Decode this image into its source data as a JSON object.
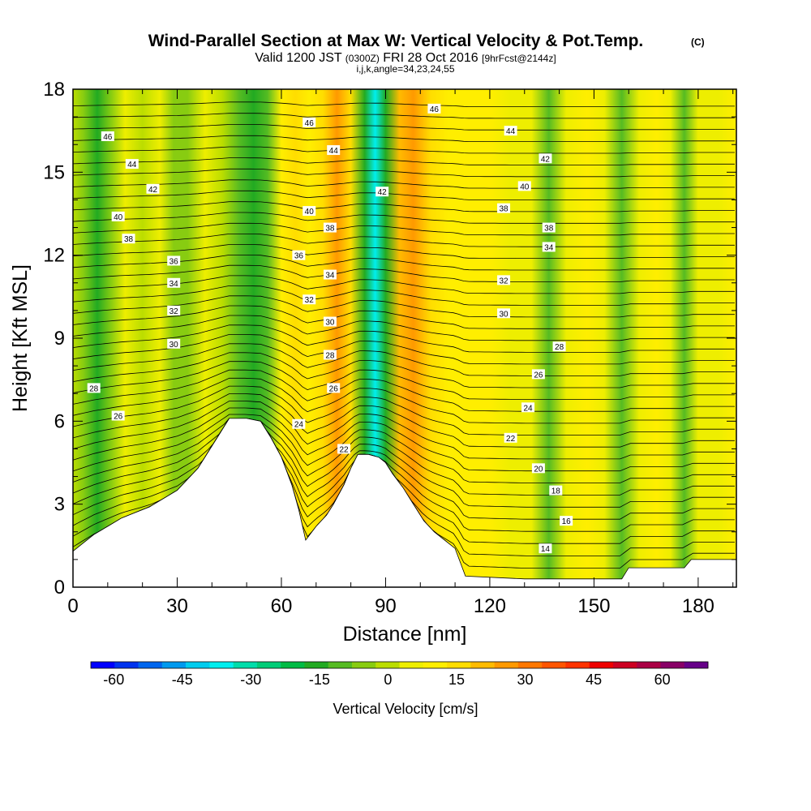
{
  "chart_data": {
    "type": "heatmap",
    "title": "Wind-Parallel Section at Max W: Vertical Velocity & Pot.Temp.",
    "title_mark": "(C)",
    "subtitle": {
      "valid_prefix": "Valid 1200 JST",
      "utc": "(0300Z)",
      "date": "FRI 28 Oct 2016",
      "fcst": "[9hrFcst@2144z]"
    },
    "subtitle2": "i,j,k,angle=34,23,24,55",
    "xlabel": "Distance [nm]",
    "ylabel": "Height [Kft MSL]",
    "xlim": [
      0,
      191
    ],
    "ylim": [
      0,
      18
    ],
    "x_ticks": [
      "0",
      "30",
      "60",
      "90",
      "120",
      "150",
      "180"
    ],
    "y_ticks": [
      "0",
      "3",
      "6",
      "9",
      "12",
      "15",
      "18"
    ],
    "colorbar": {
      "label": "Vertical Velocity [cm/s]",
      "min": -65,
      "max": 70,
      "tick_labels": [
        "-60",
        "-45",
        "-30",
        "-15",
        "0",
        "15",
        "30",
        "45",
        "60"
      ],
      "colors": [
        "#0000ff",
        "#0033ee",
        "#0066ee",
        "#0099ee",
        "#00ccee",
        "#00eeee",
        "#00ddaa",
        "#00cc77",
        "#00bb44",
        "#22aa22",
        "#55bb22",
        "#88cc11",
        "#bbdd00",
        "#eeee00",
        "#ffee00",
        "#ffdd00",
        "#ffbb00",
        "#ff9900",
        "#ff7700",
        "#ff5500",
        "#ff3300",
        "#ee0000",
        "#cc0022",
        "#aa0044",
        "#880066",
        "#660088"
      ]
    },
    "vertical_velocity_bands": [
      {
        "x": 0,
        "w": 0
      },
      {
        "x": 3,
        "w": -4
      },
      {
        "x": 7,
        "w": -14
      },
      {
        "x": 11,
        "w": -6
      },
      {
        "x": 15,
        "w": 3
      },
      {
        "x": 20,
        "w": 2
      },
      {
        "x": 25,
        "w": 3
      },
      {
        "x": 29,
        "w": -5
      },
      {
        "x": 33,
        "w": -3
      },
      {
        "x": 38,
        "w": 4
      },
      {
        "x": 43,
        "w": 2
      },
      {
        "x": 48,
        "w": -10
      },
      {
        "x": 52,
        "w": -18
      },
      {
        "x": 56,
        "w": -8
      },
      {
        "x": 60,
        "w": 8
      },
      {
        "x": 64,
        "w": 14
      },
      {
        "x": 68,
        "w": 10
      },
      {
        "x": 72,
        "w": 18
      },
      {
        "x": 76,
        "w": 26
      },
      {
        "x": 80,
        "w": 14
      },
      {
        "x": 84,
        "w": -18
      },
      {
        "x": 87,
        "w": -34
      },
      {
        "x": 90,
        "w": -14
      },
      {
        "x": 94,
        "w": 20
      },
      {
        "x": 98,
        "w": 24
      },
      {
        "x": 103,
        "w": 14
      },
      {
        "x": 108,
        "w": 8
      },
      {
        "x": 114,
        "w": 9
      },
      {
        "x": 120,
        "w": 10
      },
      {
        "x": 126,
        "w": 6
      },
      {
        "x": 132,
        "w": 3
      },
      {
        "x": 137,
        "w": -8
      },
      {
        "x": 142,
        "w": 6
      },
      {
        "x": 148,
        "w": 10
      },
      {
        "x": 153,
        "w": 3
      },
      {
        "x": 158,
        "w": -10
      },
      {
        "x": 163,
        "w": 4
      },
      {
        "x": 168,
        "w": 8
      },
      {
        "x": 172,
        "w": 4
      },
      {
        "x": 176,
        "w": -10
      },
      {
        "x": 180,
        "w": 4
      },
      {
        "x": 186,
        "w": 6
      },
      {
        "x": 191,
        "w": 10
      }
    ],
    "terrain_height_kft": [
      [
        0,
        1.3
      ],
      [
        3,
        1.6
      ],
      [
        6,
        1.9
      ],
      [
        10,
        2.2
      ],
      [
        14,
        2.5
      ],
      [
        18,
        2.7
      ],
      [
        22,
        2.9
      ],
      [
        26,
        3.2
      ],
      [
        30,
        3.5
      ],
      [
        33,
        3.9
      ],
      [
        36,
        4.3
      ],
      [
        39,
        4.9
      ],
      [
        42,
        5.5
      ],
      [
        45,
        6.1
      ],
      [
        50,
        6.1
      ],
      [
        54,
        6.0
      ],
      [
        57,
        5.4
      ],
      [
        60,
        4.7
      ],
      [
        63,
        3.7
      ],
      [
        65,
        2.8
      ],
      [
        67,
        1.7
      ],
      [
        70,
        2.2
      ],
      [
        73,
        2.6
      ],
      [
        75,
        3.0
      ],
      [
        78,
        3.7
      ],
      [
        80,
        4.3
      ],
      [
        82,
        4.8
      ],
      [
        85,
        4.8
      ],
      [
        88,
        4.7
      ],
      [
        90,
        4.5
      ],
      [
        92,
        4.1
      ],
      [
        95,
        3.6
      ],
      [
        98,
        3.0
      ],
      [
        101,
        2.4
      ],
      [
        104,
        2.0
      ],
      [
        107,
        1.7
      ],
      [
        110,
        1.4
      ],
      [
        113,
        0.4
      ],
      [
        130,
        0.3
      ],
      [
        158,
        0.3
      ],
      [
        160,
        0.7
      ],
      [
        176,
        0.7
      ],
      [
        178,
        1.0
      ],
      [
        191,
        1.0
      ]
    ],
    "theta_contour_labels": [
      {
        "text": "46",
        "x": 10,
        "y": 16.3
      },
      {
        "text": "44",
        "x": 17,
        "y": 15.3
      },
      {
        "text": "42",
        "x": 23,
        "y": 14.4
      },
      {
        "text": "40",
        "x": 13,
        "y": 13.4
      },
      {
        "text": "38",
        "x": 16,
        "y": 12.6
      },
      {
        "text": "36",
        "x": 29,
        "y": 11.8
      },
      {
        "text": "34",
        "x": 29,
        "y": 11.0
      },
      {
        "text": "32",
        "x": 29,
        "y": 10.0
      },
      {
        "text": "30",
        "x": 29,
        "y": 8.8
      },
      {
        "text": "28",
        "x": 6,
        "y": 7.2
      },
      {
        "text": "26",
        "x": 13,
        "y": 6.2
      },
      {
        "text": "46",
        "x": 68,
        "y": 16.8
      },
      {
        "text": "44",
        "x": 75,
        "y": 15.8
      },
      {
        "text": "42",
        "x": 89,
        "y": 14.3
      },
      {
        "text": "40",
        "x": 68,
        "y": 13.6
      },
      {
        "text": "38",
        "x": 74,
        "y": 13.0
      },
      {
        "text": "36",
        "x": 65,
        "y": 12.0
      },
      {
        "text": "34",
        "x": 74,
        "y": 11.3
      },
      {
        "text": "32",
        "x": 68,
        "y": 10.4
      },
      {
        "text": "30",
        "x": 74,
        "y": 9.6
      },
      {
        "text": "28",
        "x": 74,
        "y": 8.4
      },
      {
        "text": "26",
        "x": 75,
        "y": 7.2
      },
      {
        "text": "24",
        "x": 65,
        "y": 5.9
      },
      {
        "text": "22",
        "x": 78,
        "y": 5.0
      },
      {
        "text": "46",
        "x": 104,
        "y": 17.3
      },
      {
        "text": "44",
        "x": 126,
        "y": 16.5
      },
      {
        "text": "42",
        "x": 136,
        "y": 15.5
      },
      {
        "text": "40",
        "x": 130,
        "y": 14.5
      },
      {
        "text": "38",
        "x": 124,
        "y": 13.7
      },
      {
        "text": "38",
        "x": 137,
        "y": 13.0
      },
      {
        "text": "34",
        "x": 137,
        "y": 12.3
      },
      {
        "text": "32",
        "x": 124,
        "y": 11.1
      },
      {
        "text": "30",
        "x": 124,
        "y": 9.9
      },
      {
        "text": "28",
        "x": 140,
        "y": 8.7
      },
      {
        "text": "26",
        "x": 134,
        "y": 7.7
      },
      {
        "text": "24",
        "x": 131,
        "y": 6.5
      },
      {
        "text": "22",
        "x": 126,
        "y": 5.4
      },
      {
        "text": "20",
        "x": 134,
        "y": 4.3
      },
      {
        "text": "18",
        "x": 139,
        "y": 3.5
      },
      {
        "text": "16",
        "x": 142,
        "y": 2.4
      },
      {
        "text": "14",
        "x": 136,
        "y": 1.4
      }
    ]
  }
}
